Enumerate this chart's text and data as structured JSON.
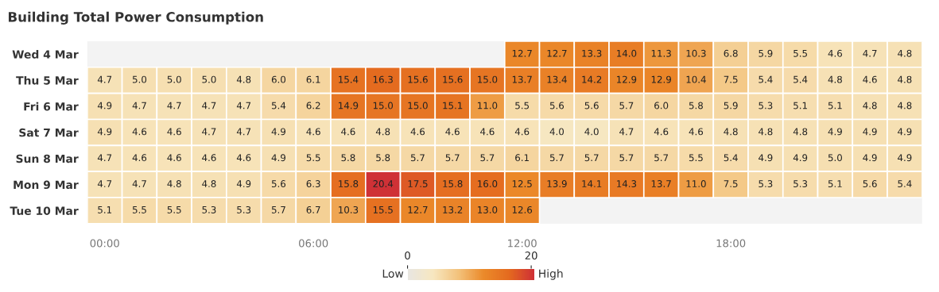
{
  "chart_data": {
    "type": "heatmap",
    "title": "Building Total Power Consumption",
    "categories": [
      "00:00",
      null,
      null,
      null,
      null,
      null,
      "06:00",
      null,
      null,
      null,
      null,
      null,
      "12:00",
      null,
      null,
      null,
      null,
      null,
      "18:00",
      null,
      null,
      null,
      null,
      null
    ],
    "y_categories": [
      "Wed 4 Mar",
      "Thu 5 Mar",
      "Fri 6 Mar",
      "Sat 7 Mar",
      "Sun 8 Mar",
      "Mon 9 Mar",
      "Tue 10 Mar"
    ],
    "cells": [
      [
        null,
        null,
        null,
        null,
        null,
        null,
        null,
        null,
        null,
        null,
        null,
        null,
        12.7,
        12.7,
        13.3,
        14.0,
        11.3,
        10.3,
        6.8,
        5.9,
        5.5,
        4.6,
        4.7,
        4.8
      ],
      [
        4.7,
        5.0,
        5.0,
        5.0,
        4.8,
        6.0,
        6.1,
        15.4,
        16.3,
        15.6,
        15.6,
        15.0,
        13.7,
        13.4,
        14.2,
        12.9,
        12.9,
        10.4,
        7.5,
        5.4,
        5.4,
        4.8,
        4.6,
        4.8
      ],
      [
        4.9,
        4.7,
        4.7,
        4.7,
        4.7,
        5.4,
        6.2,
        14.9,
        15.0,
        15.0,
        15.1,
        11.0,
        5.5,
        5.6,
        5.6,
        5.7,
        6.0,
        5.8,
        5.9,
        5.3,
        5.1,
        5.1,
        4.8,
        4.8
      ],
      [
        4.9,
        4.6,
        4.6,
        4.7,
        4.7,
        4.9,
        4.6,
        4.6,
        4.8,
        4.6,
        4.6,
        4.6,
        4.6,
        4.0,
        4.0,
        4.7,
        4.6,
        4.6,
        4.8,
        4.8,
        4.8,
        4.9,
        4.9,
        4.9
      ],
      [
        4.7,
        4.6,
        4.6,
        4.6,
        4.6,
        4.9,
        5.5,
        5.8,
        5.8,
        5.7,
        5.7,
        5.7,
        6.1,
        5.7,
        5.7,
        5.7,
        5.7,
        5.5,
        5.4,
        4.9,
        4.9,
        5.0,
        4.9,
        4.9
      ],
      [
        4.7,
        4.7,
        4.8,
        4.8,
        4.9,
        5.6,
        6.3,
        15.8,
        20.4,
        17.5,
        15.8,
        16.0,
        12.5,
        13.9,
        14.1,
        14.3,
        13.7,
        11.0,
        7.5,
        5.3,
        5.3,
        5.1,
        5.6,
        5.4
      ],
      [
        5.1,
        5.5,
        5.5,
        5.3,
        5.3,
        5.7,
        6.7,
        10.3,
        15.5,
        12.7,
        13.2,
        13.0,
        12.6,
        null,
        null,
        null,
        null,
        null,
        null,
        null,
        null,
        null,
        null,
        null
      ]
    ],
    "cell_labels": [
      [
        null,
        null,
        null,
        null,
        null,
        null,
        null,
        null,
        null,
        null,
        null,
        null,
        "12.7",
        "12.7",
        "13.3",
        "14.0",
        "11.3",
        "10.3",
        "6.8",
        "5.9",
        "5.5",
        "4.6",
        "4.7",
        "4.8"
      ],
      [
        "4.7",
        "5.0",
        "5.0",
        "5.0",
        "4.8",
        "6.0",
        "6.1",
        "15.4",
        "16.3",
        "15.6",
        "15.6",
        "15.0",
        "13.7",
        "13.4",
        "14.2",
        "12.9",
        "12.9",
        "10.4",
        "7.5",
        "5.4",
        "5.4",
        "4.8",
        "4.6",
        "4.8"
      ],
      [
        "4.9",
        "4.7",
        "4.7",
        "4.7",
        "4.7",
        "5.4",
        "6.2",
        "14.9",
        "15.0",
        "15.0",
        "15.1",
        "11.0",
        "5.5",
        "5.6",
        "5.6",
        "5.7",
        "6.0",
        "5.8",
        "5.9",
        "5.3",
        "5.1",
        "5.1",
        "4.8",
        "4.8"
      ],
      [
        "4.9",
        "4.6",
        "4.6",
        "4.7",
        "4.7",
        "4.9",
        "4.6",
        "4.6",
        "4.8",
        "4.6",
        "4.6",
        "4.6",
        "4.6",
        "4.0",
        "4.0",
        "4.7",
        "4.6",
        "4.6",
        "4.8",
        "4.8",
        "4.8",
        "4.9",
        "4.9",
        "4.9"
      ],
      [
        "4.7",
        "4.6",
        "4.6",
        "4.6",
        "4.6",
        "4.9",
        "5.5",
        "5.8",
        "5.8",
        "5.7",
        "5.7",
        "5.7",
        "6.1",
        "5.7",
        "5.7",
        "5.7",
        "5.7",
        "5.5",
        "5.4",
        "4.9",
        "4.9",
        "5.0",
        "4.9",
        "4.9"
      ],
      [
        "4.7",
        "4.7",
        "4.8",
        "4.8",
        "4.9",
        "5.6",
        "6.3",
        "15.8",
        "20.4",
        "17.5",
        "15.8",
        "16.0",
        "12.5",
        "13.9",
        "14.1",
        "14.3",
        "13.7",
        "11.0",
        "7.5",
        "5.3",
        "5.3",
        "5.1",
        "5.6",
        "5.4"
      ],
      [
        "5.1",
        "5.5",
        "5.5",
        "5.3",
        "5.3",
        "5.7",
        "6.7",
        "10.3",
        "15.5",
        "12.7",
        "13.2",
        "13.0",
        "12.6",
        null,
        null,
        null,
        null,
        null,
        null,
        null,
        null,
        null,
        null,
        null
      ]
    ],
    "clim": [
      0,
      20.5
    ],
    "cticks": [
      0,
      20
    ],
    "annotations": [
      "Low",
      "High"
    ]
  }
}
